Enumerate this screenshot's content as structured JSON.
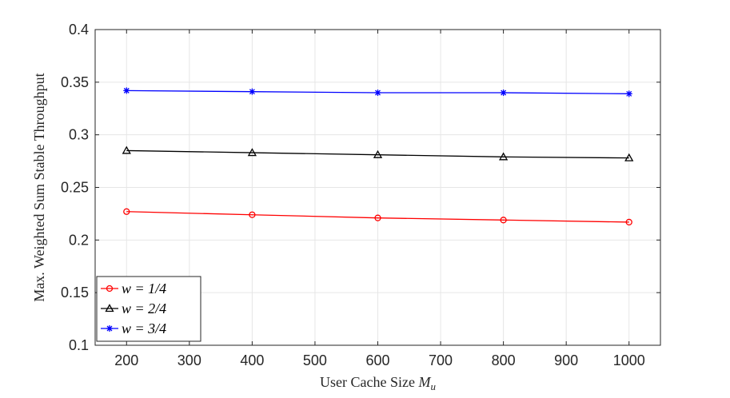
{
  "chart_data": {
    "type": "line",
    "xlabel": "User Cache Size ",
    "xlabel_math": "M",
    "xlabel_sub": "u",
    "ylabel": "Max. Weighted Sum Stable Throughput",
    "x": [
      200,
      400,
      600,
      800,
      1000
    ],
    "xlim": [
      150,
      1050
    ],
    "ylim": [
      0.1,
      0.4
    ],
    "xticks": [
      200,
      300,
      400,
      500,
      600,
      700,
      800,
      900,
      1000
    ],
    "yticks": [
      0.1,
      0.15,
      0.2,
      0.25,
      0.3,
      0.35,
      0.4
    ],
    "ytick_labels": [
      "0.1",
      "0.15",
      "0.2",
      "0.25",
      "0.3",
      "0.35",
      "0.4"
    ],
    "grid": true,
    "legend_position": "bottom-left",
    "series": [
      {
        "name": "w = 1/4",
        "color": "#ff0000",
        "marker": "circle",
        "values": [
          0.227,
          0.224,
          0.221,
          0.219,
          0.217
        ]
      },
      {
        "name": "w = 2/4",
        "color": "#000000",
        "marker": "triangle",
        "values": [
          0.285,
          0.283,
          0.281,
          0.279,
          0.278
        ]
      },
      {
        "name": "w = 3/4",
        "color": "#0000ff",
        "marker": "asterisk",
        "values": [
          0.342,
          0.341,
          0.34,
          0.34,
          0.339
        ]
      }
    ]
  }
}
